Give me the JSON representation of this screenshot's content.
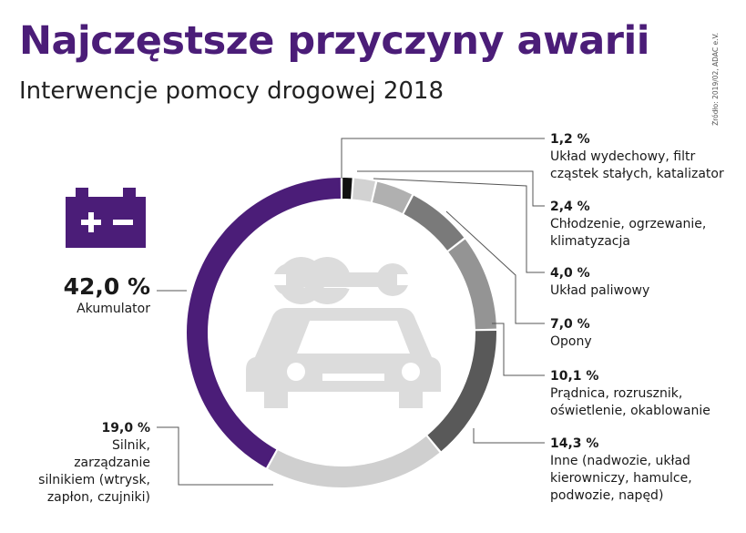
{
  "header": {
    "title": "Najczęstsze przyczyny awarii",
    "subtitle": "Interwencje pomocy drogowej 2018",
    "source": "Źródło: 2019/02, ADAC e.V."
  },
  "colors": {
    "title": "#4b1d78",
    "akumulator": "#4b1d78",
    "icon_gray": "#dcdcdc",
    "line": "#555555"
  },
  "icons": [
    "battery-icon",
    "wrench-icon",
    "car-icon"
  ],
  "chart_data": {
    "type": "pie",
    "variant": "donut",
    "title": "Najczęstsze przyczyny awarii",
    "subtitle": "Interwencje pomocy drogowej 2018",
    "unit": "%",
    "slices": [
      {
        "id": "wydech",
        "value": 1.2,
        "pct_label": "1,2 %",
        "label_lines": [
          "Układ wydechowy, filtr",
          "cząstek stałych, katalizator"
        ],
        "color": "#111111"
      },
      {
        "id": "chlodzenie",
        "value": 2.4,
        "pct_label": "2,4 %",
        "label_lines": [
          "Chłodzenie, ogrzewanie,",
          "klimatyzacja"
        ],
        "color": "#d2d2d2"
      },
      {
        "id": "paliwowy",
        "value": 4.0,
        "pct_label": "4,0 %",
        "label_lines": [
          "Układ paliwowy"
        ],
        "color": "#b0b0b0"
      },
      {
        "id": "opony",
        "value": 7.0,
        "pct_label": "7,0 %",
        "label_lines": [
          "Opony"
        ],
        "color": "#7a7a7a"
      },
      {
        "id": "pradnica",
        "value": 10.1,
        "pct_label": "10,1 %",
        "label_lines": [
          "Prądnica, rozrusznik,",
          "oświetlenie, okablowanie"
        ],
        "color": "#949494"
      },
      {
        "id": "inne",
        "value": 14.3,
        "pct_label": "14,3 %",
        "label_lines": [
          "Inne (nadwozie, układ",
          "kierowniczy, hamulce,",
          "podwozie, napęd)"
        ],
        "color": "#595959"
      },
      {
        "id": "silnik",
        "value": 19.0,
        "pct_label": "19,0 %",
        "label_lines": [
          "Silnik,",
          "zarządzanie",
          "silnikiem (wtrysk,",
          "zapłon, czujniki)"
        ],
        "color": "#cfcfcf"
      },
      {
        "id": "akumulator",
        "value": 42.0,
        "pct_label": "42,0 %",
        "label_lines": [
          "Akumulator"
        ],
        "color": "#4b1d78"
      }
    ]
  }
}
